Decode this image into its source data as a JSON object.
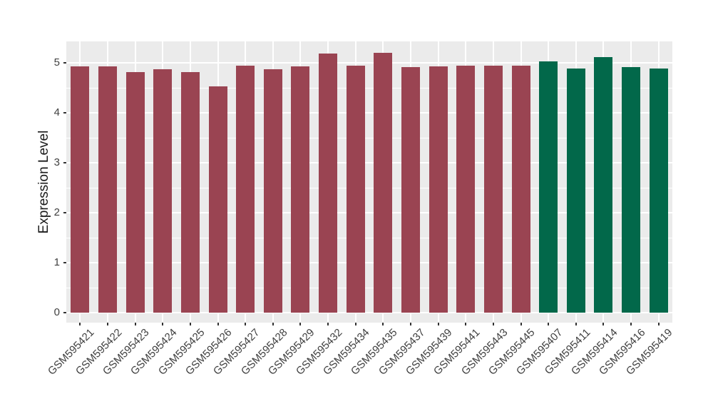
{
  "figure": {
    "background": "#ffffff",
    "panel_background": "#ebebeb",
    "grid_color": "#ffffff",
    "tick_color": "#333333",
    "axis_text_color": "#404040",
    "axis_title_color": "#1a1a1a"
  },
  "chart_data": {
    "type": "bar",
    "title": "",
    "xlabel": "",
    "ylabel": "Expression Level",
    "ylim": [
      0,
      5.43
    ],
    "yticks": [
      0,
      1,
      2,
      3,
      4,
      5
    ],
    "yticks_minor": [
      0.5,
      1.5,
      2.5,
      3.5,
      4.5
    ],
    "grid": true,
    "legend": false,
    "x_label_angle_deg": 45,
    "categories": [
      "GSM595421",
      "GSM595422",
      "GSM595423",
      "GSM595424",
      "GSM595425",
      "GSM595426",
      "GSM595427",
      "GSM595428",
      "GSM595429",
      "GSM595432",
      "GSM595434",
      "GSM595435",
      "GSM595437",
      "GSM595439",
      "GSM595441",
      "GSM595443",
      "GSM595445",
      "GSM595407",
      "GSM595411",
      "GSM595414",
      "GSM595416",
      "GSM595419"
    ],
    "values": [
      4.93,
      4.93,
      4.81,
      4.87,
      4.81,
      4.53,
      4.94,
      4.87,
      4.93,
      5.19,
      4.94,
      5.2,
      4.91,
      4.93,
      4.94,
      4.94,
      4.94,
      5.03,
      4.88,
      5.12,
      4.92,
      4.88
    ],
    "bar_colors": [
      "#9a4452",
      "#9a4452",
      "#9a4452",
      "#9a4452",
      "#9a4452",
      "#9a4452",
      "#9a4452",
      "#9a4452",
      "#9a4452",
      "#9a4452",
      "#9a4452",
      "#9a4452",
      "#9a4452",
      "#9a4452",
      "#9a4452",
      "#9a4452",
      "#9a4452",
      "#02684a",
      "#02684a",
      "#02684a",
      "#02684a",
      "#02684a"
    ]
  }
}
